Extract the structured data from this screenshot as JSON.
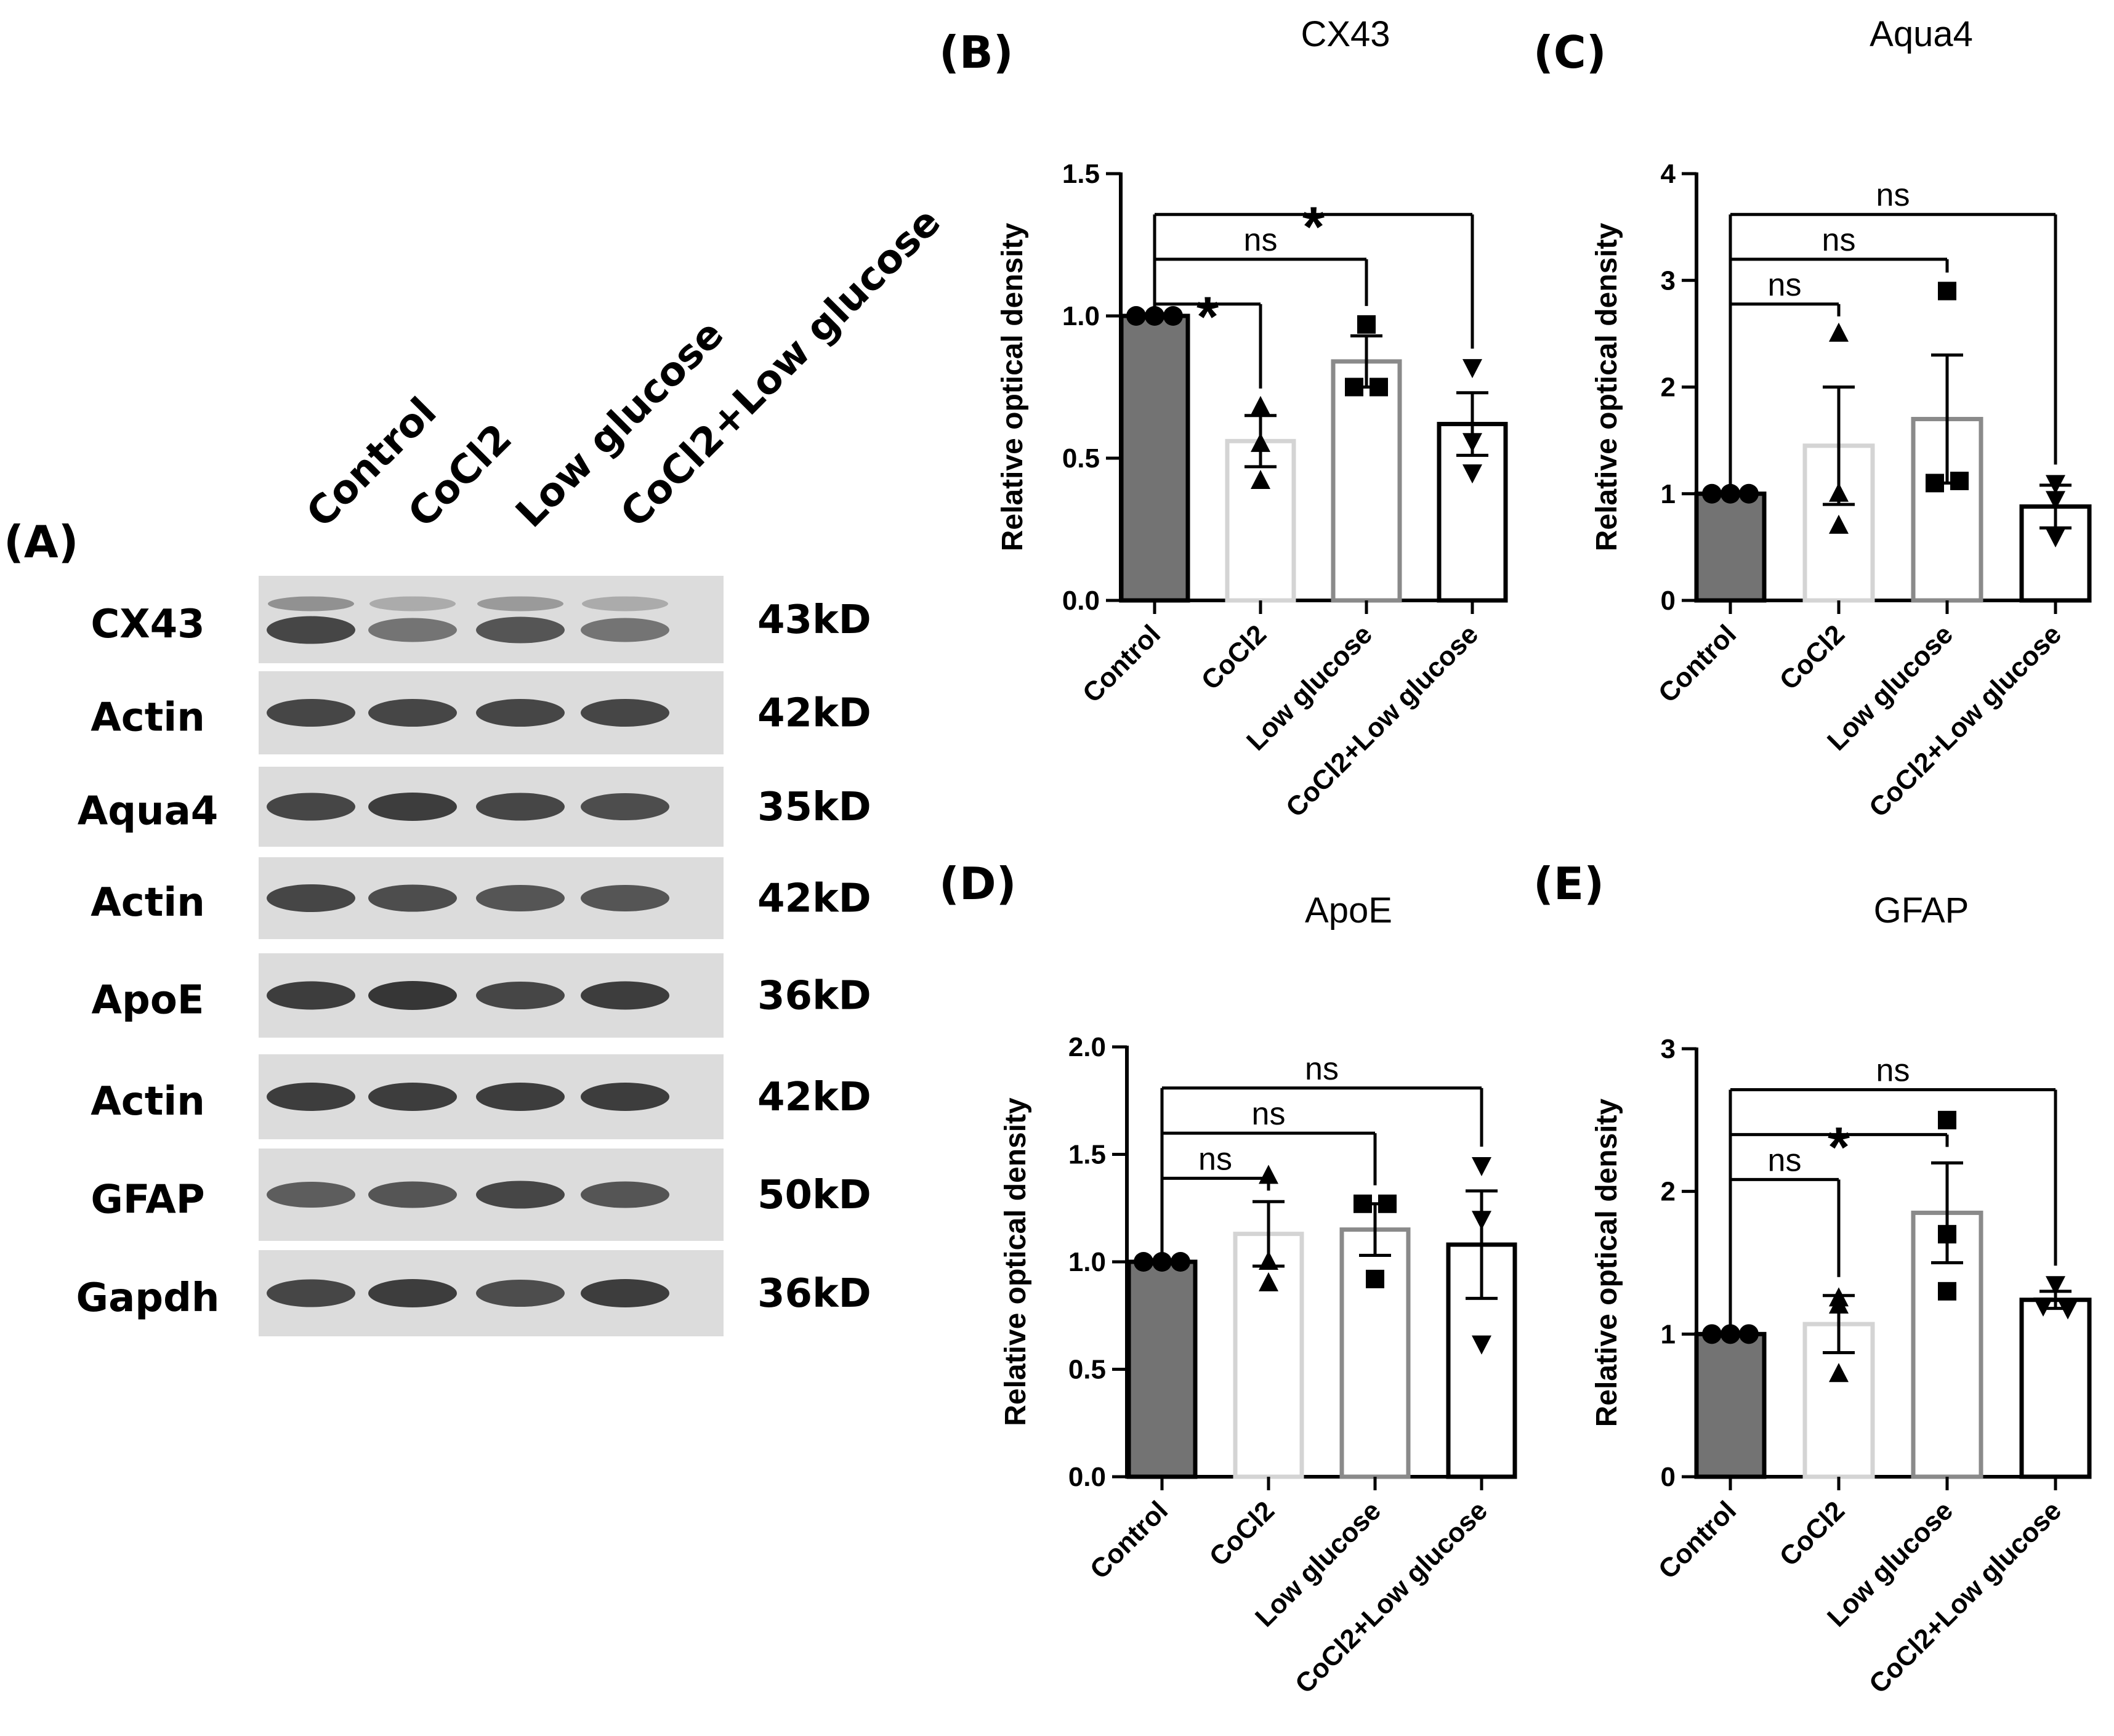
{
  "blot": {
    "panel_label": "(A)",
    "lanes": [
      "Control",
      "CoCl2",
      "Low glucose",
      "CoCl2+Low glucose"
    ],
    "rows": [
      {
        "protein": "CX43",
        "kd": "43kD"
      },
      {
        "protein": "Actin",
        "kd": "42kD"
      },
      {
        "protein": "Aqua4",
        "kd": "35kD"
      },
      {
        "protein": "Actin",
        "kd": "42kD"
      },
      {
        "protein": "ApoE",
        "kd": "36kD"
      },
      {
        "protein": "Actin",
        "kd": "42kD"
      },
      {
        "protein": "GFAP",
        "kd": "50kD"
      },
      {
        "protein": "Gapdh",
        "kd": "36kD"
      }
    ],
    "band_intensity": [
      [
        0.85,
        0.55,
        0.75,
        0.55
      ],
      [
        0.85,
        0.85,
        0.85,
        0.85
      ],
      [
        0.85,
        0.9,
        0.85,
        0.8
      ],
      [
        0.85,
        0.8,
        0.75,
        0.75
      ],
      [
        0.9,
        0.95,
        0.85,
        0.9
      ],
      [
        0.9,
        0.9,
        0.9,
        0.9
      ],
      [
        0.7,
        0.75,
        0.85,
        0.75
      ],
      [
        0.85,
        0.9,
        0.8,
        0.9
      ]
    ]
  },
  "chart_data": [
    {
      "type": "bar",
      "panel_label": "(B)",
      "title": "CX43",
      "ylabel": "Relative optical density",
      "categories": [
        "Control",
        "CoCl2",
        "Low glucose",
        "CoCl2+Low glucose"
      ],
      "values": [
        1.0,
        0.56,
        0.84,
        0.62
      ],
      "errors": [
        0.0,
        0.09,
        0.09,
        0.11
      ],
      "points": [
        [
          1.0,
          1.0,
          1.0
        ],
        [
          0.68,
          0.55,
          0.42
        ],
        [
          0.97,
          0.75,
          0.75
        ],
        [
          0.82,
          0.56,
          0.45
        ]
      ],
      "ylim": [
        0,
        1.5
      ],
      "yticks": [
        0.0,
        0.5,
        1.0,
        1.5
      ],
      "ytick_labels": [
        "0.0",
        "0.5",
        "1.0",
        "1.5"
      ],
      "bar_colors": [
        "#737373",
        "#ffffff",
        "#ffffff",
        "#ffffff"
      ],
      "bar_edge_colors": [
        "#000000",
        "#d4d4d4",
        "#8a8a8a",
        "#000000"
      ],
      "markers": [
        "circle",
        "triangle-up",
        "square",
        "triangle-down"
      ],
      "comparisons": [
        {
          "to": 1,
          "label": "*"
        },
        {
          "to": 2,
          "label": "ns"
        },
        {
          "to": 3,
          "label": "*"
        }
      ]
    },
    {
      "type": "bar",
      "panel_label": "(C)",
      "title": "Aqua4",
      "ylabel": "Relative optical density",
      "categories": [
        "Control",
        "CoCl2",
        "Low glucose",
        "CoCl2+Low glucose"
      ],
      "values": [
        1.0,
        1.45,
        1.7,
        0.88
      ],
      "errors": [
        0.0,
        0.55,
        0.6,
        0.2
      ],
      "points": [
        [
          1.0,
          1.0,
          1.0
        ],
        [
          2.5,
          1.0,
          0.7
        ],
        [
          2.9,
          1.1,
          1.12
        ],
        [
          1.1,
          0.95,
          0.6
        ]
      ],
      "ylim": [
        0,
        4
      ],
      "yticks": [
        0,
        1,
        2,
        3,
        4
      ],
      "ytick_labels": [
        "0",
        "1",
        "2",
        "3",
        "4"
      ],
      "bar_colors": [
        "#737373",
        "#ffffff",
        "#ffffff",
        "#ffffff"
      ],
      "bar_edge_colors": [
        "#000000",
        "#d4d4d4",
        "#8a8a8a",
        "#000000"
      ],
      "markers": [
        "circle",
        "triangle-up",
        "square",
        "triangle-down"
      ],
      "comparisons": [
        {
          "to": 1,
          "label": "ns"
        },
        {
          "to": 2,
          "label": "ns"
        },
        {
          "to": 3,
          "label": "ns"
        }
      ]
    },
    {
      "type": "bar",
      "panel_label": "(D)",
      "title": "ApoE",
      "ylabel": "Relative optical density",
      "categories": [
        "Control",
        "CoCl2",
        "Low glucose",
        "CoCl2+Low glucose"
      ],
      "values": [
        1.0,
        1.13,
        1.15,
        1.08
      ],
      "errors": [
        0.0,
        0.15,
        0.12,
        0.25
      ],
      "points": [
        [
          1.0,
          1.0,
          1.0
        ],
        [
          1.4,
          1.0,
          0.9
        ],
        [
          1.27,
          1.27,
          0.92
        ],
        [
          1.45,
          1.2,
          0.62
        ]
      ],
      "ylim": [
        0,
        2
      ],
      "yticks": [
        0.0,
        0.5,
        1.0,
        1.5,
        2.0
      ],
      "ytick_labels": [
        "0.0",
        "0.5",
        "1.0",
        "1.5",
        "2.0"
      ],
      "bar_colors": [
        "#737373",
        "#ffffff",
        "#ffffff",
        "#ffffff"
      ],
      "bar_edge_colors": [
        "#000000",
        "#d4d4d4",
        "#8a8a8a",
        "#000000"
      ],
      "markers": [
        "circle",
        "triangle-up",
        "square",
        "triangle-down"
      ],
      "comparisons": [
        {
          "to": 1,
          "label": "ns"
        },
        {
          "to": 2,
          "label": "ns"
        },
        {
          "to": 3,
          "label": "ns"
        }
      ]
    },
    {
      "type": "bar",
      "panel_label": "(E)",
      "title": "GFAP",
      "ylabel": "Relative optical density",
      "categories": [
        "Control",
        "CoCl2",
        "Low glucose",
        "CoCl2+Low glucose"
      ],
      "values": [
        1.0,
        1.07,
        1.85,
        1.24
      ],
      "errors": [
        0.0,
        0.2,
        0.35,
        0.06
      ],
      "points": [
        [
          1.0,
          1.0,
          1.0
        ],
        [
          1.25,
          1.2,
          0.72
        ],
        [
          2.5,
          1.7,
          1.3
        ],
        [
          1.35,
          1.2,
          1.18
        ]
      ],
      "ylim": [
        0,
        3
      ],
      "yticks": [
        0,
        1,
        2,
        3
      ],
      "ytick_labels": [
        "0",
        "1",
        "2",
        "3"
      ],
      "bar_colors": [
        "#737373",
        "#ffffff",
        "#ffffff",
        "#ffffff"
      ],
      "bar_edge_colors": [
        "#000000",
        "#d4d4d4",
        "#8a8a8a",
        "#000000"
      ],
      "markers": [
        "circle",
        "triangle-up",
        "square",
        "triangle-down"
      ],
      "comparisons": [
        {
          "to": 1,
          "label": "ns"
        },
        {
          "to": 2,
          "label": "*"
        },
        {
          "to": 3,
          "label": "ns"
        }
      ]
    }
  ]
}
